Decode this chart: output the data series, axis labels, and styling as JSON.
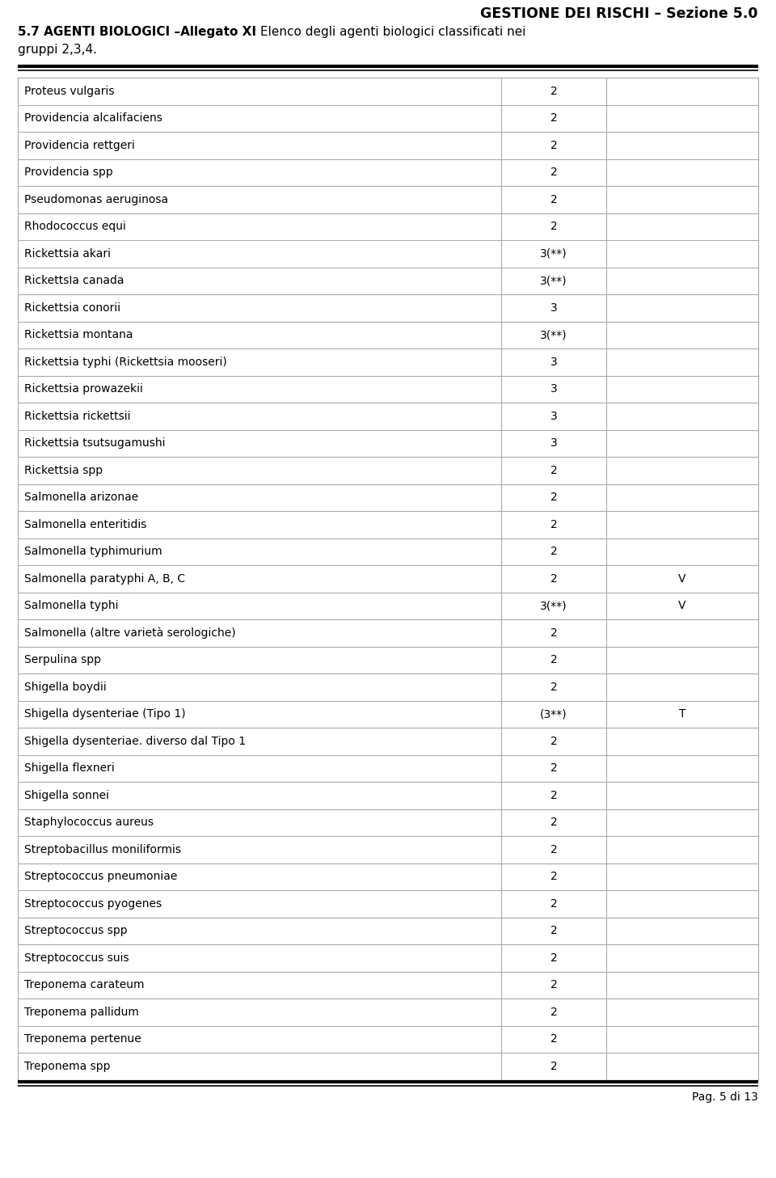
{
  "title_right": "GESTIONE DEI RISCHI – Sezione 5.0",
  "subtitle_bold": "5.7 AGENTI BIOLOGICI –Allegato XI",
  "subtitle_normal": ": Elenco degli agenti biologici classificati nei",
  "subtitle_line2": "gruppi 2,3,4.",
  "rows": [
    [
      "Proteus vulgaris",
      "2",
      ""
    ],
    [
      "Providencia alcalifaciens",
      "2",
      ""
    ],
    [
      "Providencia rettgeri",
      "2",
      ""
    ],
    [
      "Providencia spp",
      "2",
      ""
    ],
    [
      "Pseudomonas aeruginosa",
      "2",
      ""
    ],
    [
      "Rhodococcus equi",
      "2",
      ""
    ],
    [
      "Rickettsia akari",
      "3(**)",
      ""
    ],
    [
      "RickettsIa canada",
      "3(**)",
      ""
    ],
    [
      "Rickettsia conorii",
      "3",
      ""
    ],
    [
      "Rickettsia montana",
      "3(**)",
      ""
    ],
    [
      "Rickettsia typhi (Rickettsia mooseri)",
      "3",
      ""
    ],
    [
      "Rickettsia prowazekii",
      "3",
      ""
    ],
    [
      "Rickettsia rickettsii",
      "3",
      ""
    ],
    [
      "Rickettsia tsutsugamushi",
      "3",
      ""
    ],
    [
      "Rickettsia spp",
      "2",
      ""
    ],
    [
      "Salmonella arizonae",
      "2",
      ""
    ],
    [
      "Salmonella enteritidis",
      "2",
      ""
    ],
    [
      "Salmonella typhimurium",
      "2",
      ""
    ],
    [
      "Salmonella paratyphi A, B, C",
      "2",
      "V"
    ],
    [
      "Salmonella typhi",
      "3(**)",
      "V"
    ],
    [
      "Salmonella (altre varietà serologiche)",
      "2",
      ""
    ],
    [
      "Serpulina spp",
      "2",
      ""
    ],
    [
      "Shigella boydii",
      "2",
      ""
    ],
    [
      "Shigella dysenteriae (Tipo 1)",
      "(3**)",
      "T"
    ],
    [
      "Shigella dysenteriae. diverso dal Tipo 1",
      "2",
      ""
    ],
    [
      "Shigella flexneri",
      "2",
      ""
    ],
    [
      "Shigella sonnei",
      "2",
      ""
    ],
    [
      "Staphylococcus aureus",
      "2",
      ""
    ],
    [
      "Streptobacillus moniliformis",
      "2",
      ""
    ],
    [
      "Streptococcus pneumoniae",
      "2",
      ""
    ],
    [
      "Streptococcus pyogenes",
      "2",
      ""
    ],
    [
      "Streptococcus spp",
      "2",
      ""
    ],
    [
      "Streptococcus suis",
      "2",
      ""
    ],
    [
      "Treponema carateum",
      "2",
      ""
    ],
    [
      "Treponema pallidum",
      "2",
      ""
    ],
    [
      "Treponema pertenue",
      "2",
      ""
    ],
    [
      "Treponema spp",
      "2",
      ""
    ]
  ],
  "footer_text": "Pag. 5 di 13",
  "bg_color": "#ffffff",
  "border_color": "#aaaaaa",
  "text_color": "#000000",
  "font_size": 10.0,
  "header_font_size": 11.0,
  "title_font_size": 12.5
}
